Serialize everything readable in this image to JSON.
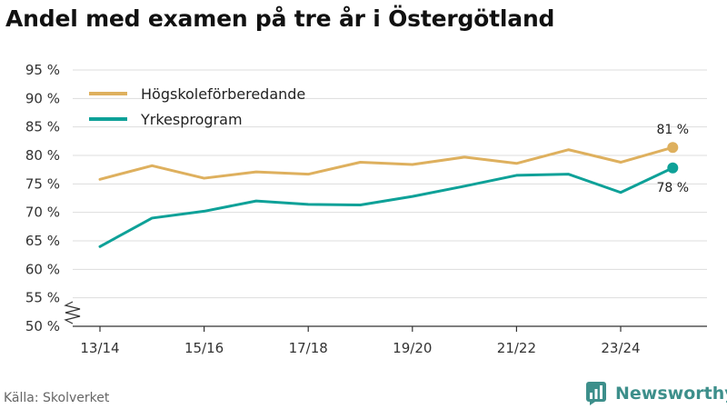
{
  "title": "Andel med examen på tre år i Östergötland",
  "source": "Källa: Skolverket",
  "brand": "Newsworthy",
  "colors": {
    "series_1": "#deb05e",
    "series_2": "#0ea198",
    "grid": "#dddddd",
    "brand": "#3d8f8b"
  },
  "chart_data": {
    "type": "line",
    "title": "Andel med examen på tre år i Östergötland",
    "xlabel": "",
    "ylabel": "",
    "x": [
      "13/14",
      "14/15",
      "15/16",
      "16/17",
      "17/18",
      "18/19",
      "19/20",
      "20/21",
      "21/22",
      "22/23",
      "23/24",
      "24/25"
    ],
    "x_tick_labels": [
      "13/14",
      "15/16",
      "17/18",
      "19/20",
      "21/22",
      "23/24"
    ],
    "y_tick_labels": [
      "50 %",
      "55 %",
      "60 %",
      "65 %",
      "70 %",
      "75 %",
      "80 %",
      "85 %",
      "90 %",
      "95 %"
    ],
    "ylim": [
      50,
      95
    ],
    "axis_break": true,
    "grid": true,
    "legend_position": "top-left",
    "series": [
      {
        "name": "Högskoleförberedande",
        "color": "#deb05e",
        "end_label": "81 %",
        "values": [
          75.8,
          78.2,
          76.0,
          77.1,
          76.7,
          78.8,
          78.4,
          79.7,
          78.6,
          81.0,
          78.8,
          81.4
        ]
      },
      {
        "name": "Yrkesprogram",
        "color": "#0ea198",
        "end_label": "78 %",
        "values": [
          64.0,
          69.0,
          70.2,
          72.0,
          71.4,
          71.3,
          72.8,
          74.6,
          76.5,
          76.7,
          73.5,
          77.8
        ]
      }
    ]
  }
}
